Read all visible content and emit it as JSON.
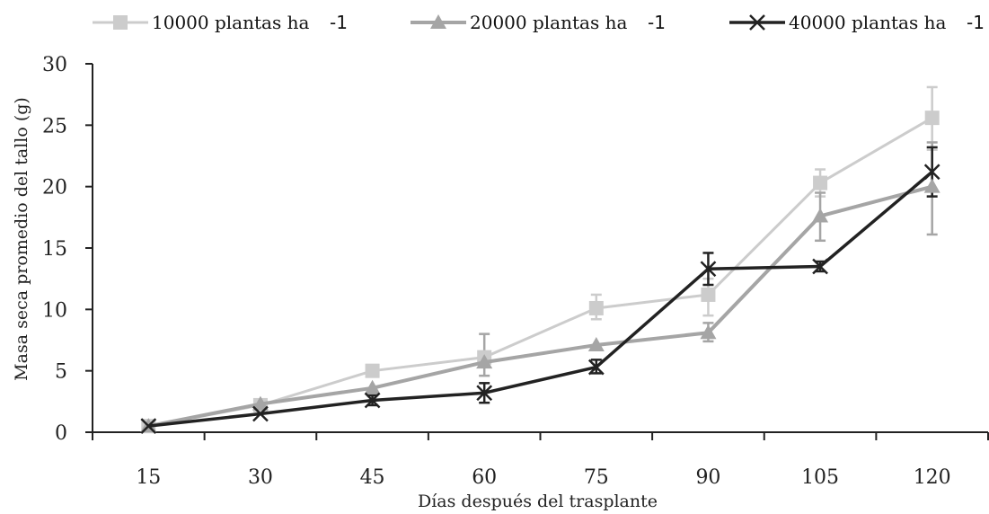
{
  "chart_data": {
    "type": "line",
    "xlabel": "Días después del trasplante",
    "ylabel": "Masa seca promedio del tallo (g)",
    "x": [
      15,
      30,
      45,
      60,
      75,
      90,
      105,
      120
    ],
    "ylim": [
      0,
      30
    ],
    "yticks": [
      0,
      5,
      10,
      15,
      20,
      25,
      30
    ],
    "grid": false,
    "legend_position": "top",
    "series": [
      {
        "name": "10000 plantas ha",
        "name_suffix": "-1",
        "marker": "square",
        "color": "#cccccc",
        "values": [
          0.5,
          2.2,
          5.0,
          6.1,
          10.1,
          11.2,
          20.3,
          25.6
        ],
        "err_low": [
          null,
          null,
          null,
          null,
          9.2,
          9.5,
          19.2,
          23.0
        ],
        "err_high": [
          null,
          null,
          null,
          null,
          11.2,
          12.5,
          21.4,
          28.1
        ]
      },
      {
        "name": "20000 plantas ha",
        "name_suffix": "-1",
        "marker": "triangle",
        "color": "#a5a5a5",
        "values": [
          0.5,
          2.3,
          3.6,
          5.7,
          7.1,
          8.1,
          17.6,
          20.0
        ],
        "err_low": [
          null,
          null,
          null,
          4.6,
          null,
          7.4,
          15.6,
          16.1
        ],
        "err_high": [
          null,
          null,
          null,
          8.0,
          null,
          8.9,
          19.5,
          23.6
        ]
      },
      {
        "name": "40000 plantas ha",
        "name_suffix": "-1",
        "marker": "x",
        "color": "#222222",
        "values": [
          0.5,
          1.5,
          2.6,
          3.2,
          5.3,
          13.3,
          13.5,
          21.2
        ],
        "err_low": [
          null,
          null,
          2.2,
          2.4,
          4.8,
          12.0,
          13.1,
          19.2
        ],
        "err_high": [
          null,
          null,
          3.0,
          4.0,
          5.9,
          14.6,
          13.9,
          23.2
        ]
      }
    ]
  }
}
